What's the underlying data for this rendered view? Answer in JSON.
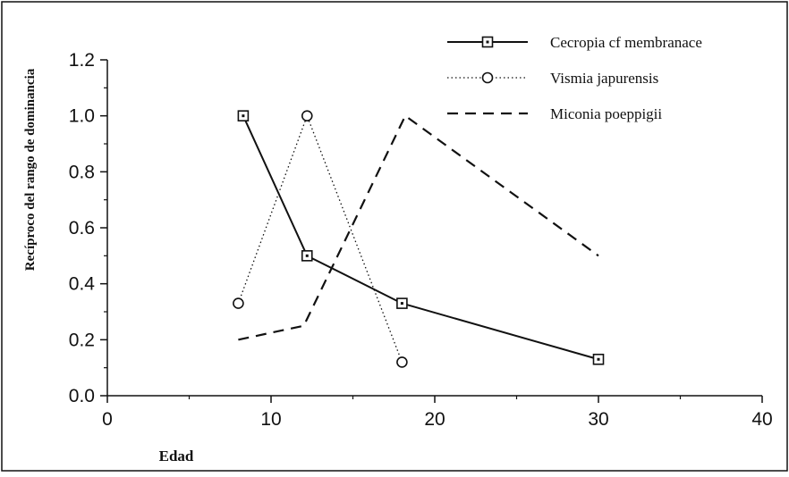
{
  "chart_data": {
    "type": "line",
    "xlabel": "Edad",
    "ylabel": "Recíproco del rango de dominancia",
    "xlim": [
      0,
      40
    ],
    "ylim": [
      0,
      1.2
    ],
    "x_ticks": [
      "0",
      "10",
      "20",
      "30",
      "40"
    ],
    "y_ticks": [
      "0.0",
      "0.2",
      "0.4",
      "0.6",
      "0.8",
      "1.0",
      "1.2"
    ],
    "grid": false,
    "legend_position": "top-right",
    "series": [
      {
        "name": "Cecropia cf membranace",
        "style": "solid",
        "marker": "square",
        "color": "#111111",
        "x": [
          8.3,
          12.2,
          18,
          30
        ],
        "y": [
          1.0,
          0.5,
          0.33,
          0.13
        ]
      },
      {
        "name": "Vismia japurensis",
        "style": "dotted",
        "marker": "circle",
        "color": "#111111",
        "x": [
          8,
          12.2,
          18
        ],
        "y": [
          0.33,
          1.0,
          0.12
        ]
      },
      {
        "name": "Miconia poeppigii",
        "style": "dashed",
        "marker": "none",
        "color": "#111111",
        "x": [
          8,
          12,
          18.2,
          30
        ],
        "y": [
          0.2,
          0.25,
          1.0,
          0.5
        ]
      }
    ]
  }
}
